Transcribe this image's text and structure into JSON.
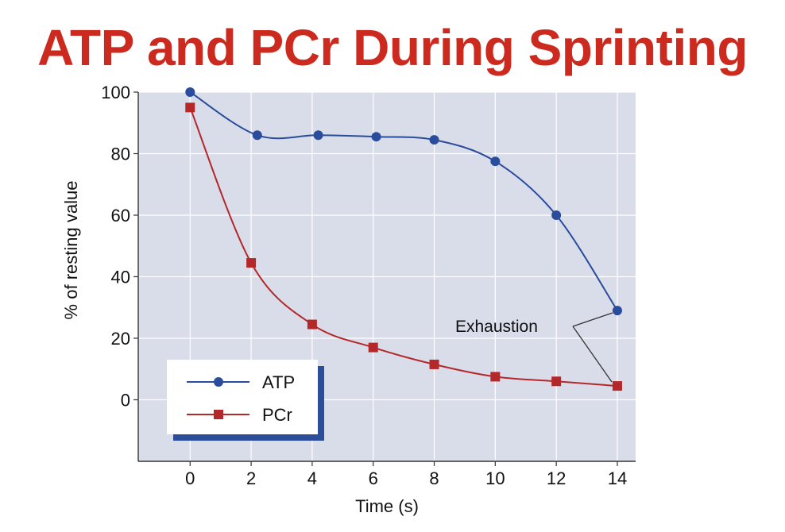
{
  "title": "ATP and PCr During Sprinting",
  "chart_data": {
    "type": "line",
    "title": "ATP and PCr During Sprinting",
    "xlabel": "Time (s)",
    "ylabel": "% of resting value",
    "x_ticks": [
      "0",
      "2",
      "4",
      "6",
      "8",
      "10",
      "12",
      "14"
    ],
    "y_ticks": [
      "0",
      "20",
      "40",
      "60",
      "80",
      "100"
    ],
    "xlim": [
      -1.7,
      14.6
    ],
    "ylim": [
      -20,
      100
    ],
    "grid": true,
    "legend_position": "bottom-left",
    "annotation": "Exhaustion",
    "series": [
      {
        "name": "ATP",
        "marker": "circle",
        "color": "#2a4c9c",
        "x": [
          0,
          2.2,
          4.2,
          6.1,
          8,
          10,
          12,
          14
        ],
        "y": [
          100,
          86,
          86,
          85.5,
          84.5,
          77.5,
          60,
          29
        ]
      },
      {
        "name": "PCr",
        "marker": "square",
        "color": "#b5282a",
        "x": [
          0,
          2,
          4,
          6,
          8,
          10,
          12,
          14
        ],
        "y": [
          95,
          44.5,
          24.5,
          17,
          11.5,
          7.5,
          6,
          4.5
        ]
      }
    ]
  }
}
